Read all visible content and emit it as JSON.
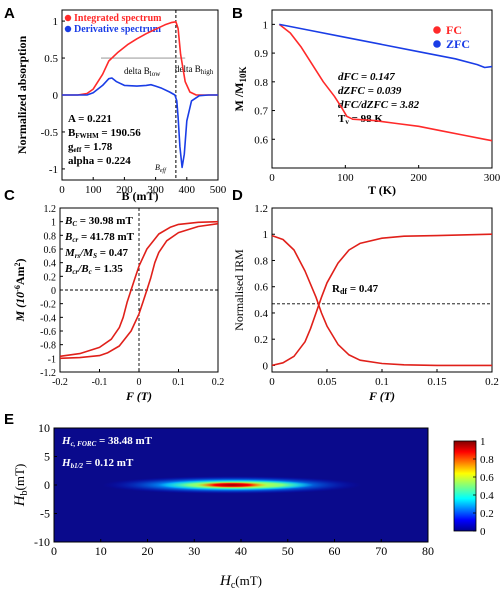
{
  "chart_data": [
    {
      "panel": "A",
      "type": "line",
      "xlabel": "B (mT)",
      "ylabel": "Normalized absorption",
      "xlim": [
        0,
        500
      ],
      "ylim": [
        -1.15,
        1.15
      ],
      "xticks": [
        0,
        100,
        200,
        300,
        400,
        500
      ],
      "yticks": [
        -1,
        -0.5,
        0,
        0.5,
        1
      ],
      "series": [
        {
          "name": "Integrated spectrum",
          "color": "#ff2a2a",
          "x": [
            0,
            50,
            80,
            100,
            130,
            150,
            180,
            210,
            240,
            270,
            300,
            330,
            350,
            365,
            372,
            380,
            395,
            410,
            430,
            460,
            500
          ],
          "y": [
            0,
            0.0,
            0.02,
            0.08,
            0.28,
            0.46,
            0.58,
            0.68,
            0.76,
            0.83,
            0.89,
            0.95,
            0.98,
            0.99,
            0.9,
            0.55,
            0.18,
            0.04,
            0.0,
            0.0,
            0.0
          ]
        },
        {
          "name": "Derivative spectrum",
          "color": "#1a3de6",
          "x": [
            0,
            80,
            100,
            130,
            150,
            160,
            175,
            200,
            240,
            270,
            285,
            300,
            320,
            345,
            362,
            368,
            372,
            378,
            385,
            392,
            400,
            415,
            440,
            470,
            500
          ],
          "y": [
            0,
            0.0,
            0.03,
            0.13,
            0.22,
            0.23,
            0.18,
            0.13,
            0.12,
            0.13,
            0.14,
            0.12,
            0.09,
            0.04,
            0.0,
            -0.08,
            -0.3,
            -0.7,
            -0.98,
            -0.8,
            -0.35,
            -0.08,
            -0.01,
            0.0,
            0.0
          ]
        }
      ],
      "legend": [
        "Integrated spectrum",
        "Derivative spectrum"
      ],
      "legend_position": "top-left",
      "annotations": {
        "delta_low": "delta B",
        "delta_low_sub": "low",
        "delta_high": "delta B",
        "delta_high_sub": "high",
        "beff": "B",
        "beff_sub": "eff",
        "line1": "A = 0.221",
        "line2": "B",
        "line2_sub": "FWHM",
        "line2_val": " = 190.56",
        "line3": "g",
        "line3_sub": "eff",
        "line3_val": " = 1.78",
        "line4": "alpha = 0.224"
      },
      "vline_x": 365
    },
    {
      "panel": "B",
      "type": "line",
      "xlabel": "T (K)",
      "ylabel": "M /M",
      "ylabel_sub": "10K",
      "xlim": [
        0,
        300
      ],
      "ylim": [
        0.5,
        1.05
      ],
      "xticks": [
        0,
        100,
        200,
        300
      ],
      "yticks": [
        0.6,
        0.7,
        0.8,
        0.9,
        1
      ],
      "series": [
        {
          "name": "FC",
          "color": "#ff2a2a",
          "x": [
            10,
            25,
            40,
            55,
            70,
            85,
            95,
            102,
            110,
            140,
            170,
            200,
            230,
            260,
            290,
            300
          ],
          "y": [
            1.0,
            0.97,
            0.92,
            0.86,
            0.8,
            0.75,
            0.71,
            0.68,
            0.67,
            0.665,
            0.655,
            0.645,
            0.63,
            0.615,
            0.6,
            0.595
          ]
        },
        {
          "name": "ZFC",
          "color": "#1a3de6",
          "x": [
            10,
            50,
            100,
            150,
            200,
            250,
            280,
            290,
            300
          ],
          "y": [
            1.0,
            0.98,
            0.955,
            0.93,
            0.905,
            0.88,
            0.86,
            0.85,
            0.853
          ]
        }
      ],
      "legend": [
        "FC",
        "ZFC"
      ],
      "legend_position": "top-right",
      "annotations": {
        "l1": "dFC = 0.147",
        "l2": "dZFC = 0.039",
        "l3": "dFC/dZFC = 3.82",
        "l4": "T",
        "l4_sub": "v",
        "l4_val": " = 98 K"
      }
    },
    {
      "panel": "C",
      "type": "line",
      "xlabel": "F (T)",
      "ylabel": "M (10",
      "ylabel_sup": "-6",
      "ylabel_rest": "Am",
      "ylabel_sup2": "2",
      "ylabel_end": ")",
      "xlim": [
        -0.2,
        0.2
      ],
      "ylim": [
        -1.2,
        1.2
      ],
      "xticks": [
        -0.2,
        -0.1,
        0,
        0.1,
        0.2
      ],
      "yticks": [
        -1.2,
        -1,
        -0.8,
        -0.6,
        -0.4,
        -0.2,
        0,
        0.2,
        0.4,
        0.6,
        0.8,
        1,
        1.2
      ],
      "series": [
        {
          "name": "upper branch",
          "color": "#e0201a",
          "x": [
            -0.2,
            -0.15,
            -0.1,
            -0.07,
            -0.05,
            -0.04,
            -0.03,
            -0.02,
            -0.01,
            0.0,
            0.02,
            0.05,
            0.08,
            0.1,
            0.15,
            0.2
          ],
          "y": [
            -0.97,
            -0.93,
            -0.84,
            -0.72,
            -0.55,
            -0.4,
            -0.18,
            0.0,
            0.18,
            0.35,
            0.6,
            0.82,
            0.92,
            0.96,
            0.99,
            1.0
          ]
        },
        {
          "name": "lower branch",
          "color": "#e0201a",
          "x": [
            -0.2,
            -0.15,
            -0.1,
            -0.08,
            -0.05,
            -0.02,
            0.0,
            0.01,
            0.02,
            0.03,
            0.04,
            0.05,
            0.07,
            0.1,
            0.15,
            0.2
          ],
          "y": [
            -1.0,
            -0.99,
            -0.96,
            -0.92,
            -0.82,
            -0.6,
            -0.35,
            -0.18,
            0.0,
            0.18,
            0.4,
            0.55,
            0.72,
            0.84,
            0.93,
            0.97
          ]
        }
      ],
      "hline_y": 0,
      "vline_x": 0,
      "annotations": {
        "l1": "B",
        "l1_sub": "C",
        "l1_val": " = 30.98 mT",
        "l2": "B",
        "l2_sub": "cr",
        "l2_val": " = 41.78 mT",
        "l3": "M",
        "l3_sub": "rs",
        "l3_mid": "/M",
        "l3_sub2": "S",
        "l3_val": " = 0.47",
        "l4": "B",
        "l4_sub": "cr",
        "l4_mid": "/B",
        "l4_sub2": "c",
        "l4_val": " = 1.35"
      }
    },
    {
      "panel": "D",
      "type": "line",
      "xlabel": "F (T)",
      "ylabel": "Normalised IRM",
      "xlim": [
        0,
        0.2
      ],
      "ylim": [
        -0.05,
        1.2
      ],
      "xticks": [
        0,
        0.05,
        0.1,
        0.15,
        0.2
      ],
      "yticks": [
        0,
        0.2,
        0.4,
        0.6,
        0.8,
        1,
        1.2
      ],
      "series": [
        {
          "name": "rising",
          "color": "#e0201a",
          "x": [
            0,
            0.01,
            0.02,
            0.03,
            0.035,
            0.04,
            0.045,
            0.05,
            0.06,
            0.07,
            0.08,
            0.1,
            0.12,
            0.15,
            0.2
          ],
          "y": [
            0.0,
            0.02,
            0.07,
            0.18,
            0.28,
            0.4,
            0.52,
            0.63,
            0.78,
            0.88,
            0.93,
            0.97,
            0.985,
            0.99,
            1.0
          ]
        },
        {
          "name": "falling",
          "color": "#e0201a",
          "x": [
            0,
            0.01,
            0.02,
            0.03,
            0.04,
            0.045,
            0.05,
            0.06,
            0.07,
            0.08,
            0.1,
            0.12,
            0.15,
            0.2
          ],
          "y": [
            0.99,
            0.96,
            0.88,
            0.72,
            0.52,
            0.4,
            0.3,
            0.16,
            0.08,
            0.04,
            0.015,
            0.005,
            0.0,
            0.0
          ]
        }
      ],
      "hline_y": 0.47,
      "annotations": {
        "rdf": "R",
        "rdf_sub": "df",
        "rdf_val": " = 0.47"
      }
    },
    {
      "panel": "E",
      "type": "heatmap",
      "xlabel": "H",
      "xlabel_sub": "c",
      "xlabel_unit": "(mT)",
      "ylabel": "H",
      "ylabel_sub": "b",
      "ylabel_unit": "(mT)",
      "xlim": [
        0,
        80
      ],
      "ylim": [
        -10,
        10
      ],
      "xticks": [
        0,
        10,
        20,
        30,
        40,
        50,
        60,
        70,
        80
      ],
      "yticks": [
        -10,
        -5,
        0,
        5,
        10
      ],
      "peak": {
        "hc": 38.48,
        "hb": 0
      },
      "colorbar": {
        "ticks": [
          0,
          0.2,
          0.4,
          0.6,
          0.8,
          1
        ]
      },
      "annotations": {
        "l1": "H",
        "l1_sub": "c, FORC",
        "l1_val": " = 38.48 mT",
        "l2": "H",
        "l2_sub": "b1/2",
        "l2_val": " = 0.12 mT"
      }
    }
  ]
}
